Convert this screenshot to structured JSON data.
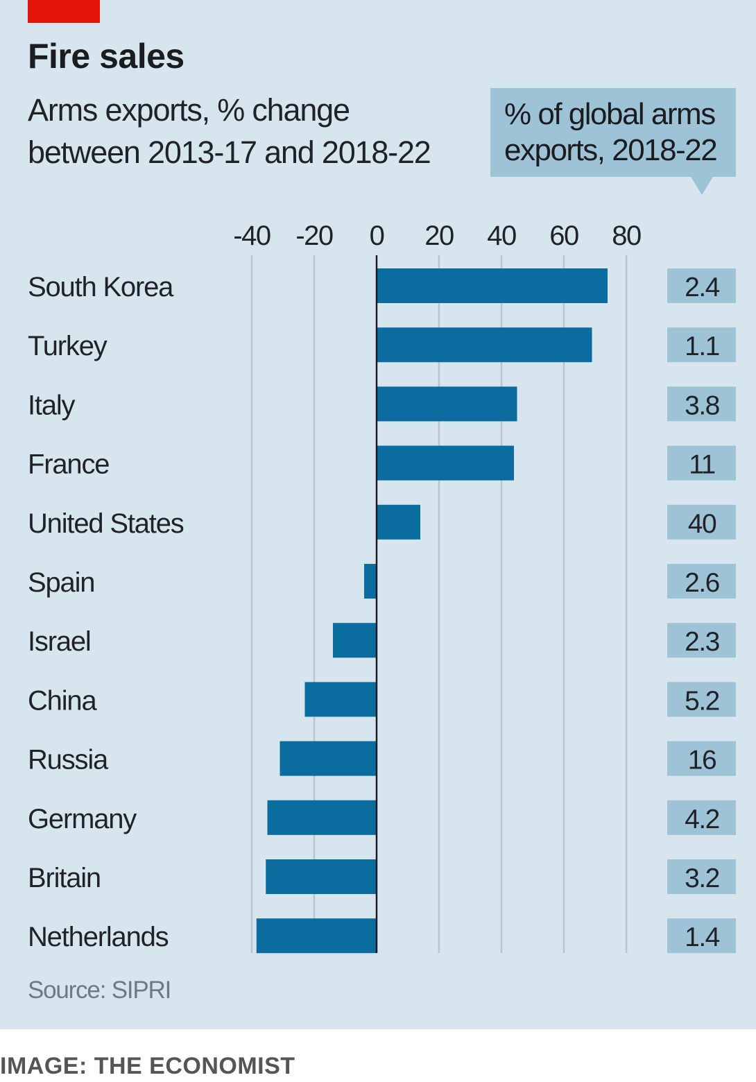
{
  "header": {
    "title": "Fire sales",
    "subtitle_line1": "Arms exports, % change",
    "subtitle_line2": "between 2013-17 and 2018-22",
    "callout_line1": "% of global arms",
    "callout_line2": "exports, 2018-22"
  },
  "footer": {
    "source": "Source: SIPRI",
    "credit": "IMAGE: THE ECONOMIST"
  },
  "colors": {
    "bar": "#0b6ca0",
    "background": "#d7e5ee",
    "accent_red": "#e3120b",
    "share_box": "#9ec3d6",
    "gridline": "#b8c5cd",
    "zero_line": "#1a1c20"
  },
  "chart_data": {
    "type": "bar",
    "orientation": "horizontal",
    "title": "Fire sales",
    "subtitle": "Arms exports, % change between 2013-17 and 2018-22",
    "xlabel": "",
    "ylabel": "",
    "xlim": [
      -40,
      80
    ],
    "xticks": [
      -40,
      -20,
      0,
      20,
      40,
      60,
      80
    ],
    "xtick_labels": [
      "-40",
      "-20",
      "0",
      "20",
      "40",
      "60",
      "80"
    ],
    "tick_position": "top",
    "grid": true,
    "categories": [
      "South Korea",
      "Turkey",
      "Italy",
      "France",
      "United States",
      "Spain",
      "Israel",
      "China",
      "Russia",
      "Germany",
      "Britain",
      "Netherlands"
    ],
    "series": [
      {
        "name": "Arms exports, % change between 2013-17 and 2018-22",
        "values": [
          74,
          69,
          45,
          44,
          14,
          -4,
          -14,
          -23,
          -31,
          -35,
          -35.5,
          -38.5
        ]
      },
      {
        "name": "% of global arms exports, 2018-22",
        "values": [
          2.4,
          1.1,
          3.8,
          11,
          40,
          2.6,
          2.3,
          5.2,
          16,
          4.2,
          3.2,
          1.4
        ],
        "labels": [
          "2.4",
          "1.1",
          "3.8",
          "11",
          "40",
          "2.6",
          "2.3",
          "5.2",
          "16",
          "4.2",
          "3.2",
          "1.4"
        ]
      }
    ],
    "source": "Source: SIPRI"
  }
}
